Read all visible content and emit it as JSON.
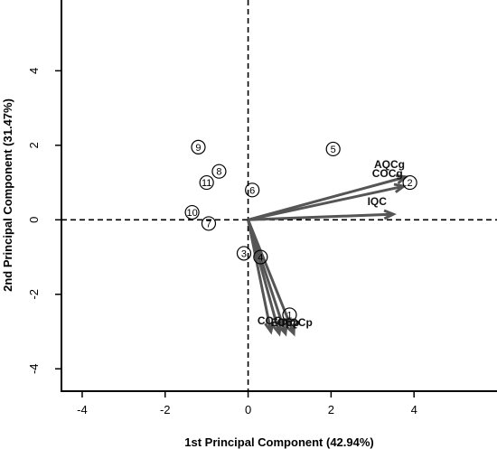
{
  "chart_data": {
    "type": "scatter",
    "subtype": "pca-biplot",
    "title": "",
    "xlabel": "1st Principal Component (42.94%)",
    "ylabel": "2nd Principal Component (31.47%)",
    "xlim": [
      -4.5,
      6.0
    ],
    "ylim": [
      -4.6,
      5.9
    ],
    "x_ticks": [
      "-4",
      "-2",
      "0",
      "2",
      "4"
    ],
    "y_ticks": [
      "-4",
      "-2",
      "0",
      "2",
      "4"
    ],
    "x_tick_values": [
      -4,
      -2,
      0,
      2,
      4
    ],
    "y_tick_values": [
      -4,
      -2,
      0,
      2,
      4
    ],
    "reference_lines": {
      "x": 0,
      "y": 0,
      "style": "dashed"
    },
    "grid": false,
    "observations": [
      {
        "label": "1",
        "x": 1.0,
        "y": -2.55
      },
      {
        "label": "2",
        "x": 3.9,
        "y": 1.0
      },
      {
        "label": "3",
        "x": -0.1,
        "y": -0.9
      },
      {
        "label": "4",
        "x": 0.3,
        "y": -1.0
      },
      {
        "label": "5",
        "x": 2.05,
        "y": 1.9
      },
      {
        "label": "6",
        "x": 0.1,
        "y": 0.8
      },
      {
        "label": "7",
        "x": -0.95,
        "y": -0.1
      },
      {
        "label": "8",
        "x": -0.7,
        "y": 1.3
      },
      {
        "label": "9",
        "x": -1.2,
        "y": 1.95
      },
      {
        "label": "10",
        "x": -1.35,
        "y": 0.2
      },
      {
        "label": "11",
        "x": -1.0,
        "y": 1.0
      }
    ],
    "loadings": [
      {
        "label": "AQCg",
        "x": 3.8,
        "y": 1.15
      },
      {
        "label": "COCg",
        "x": 3.75,
        "y": 0.9
      },
      {
        "label": "IQC",
        "x": 3.5,
        "y": 0.15
      },
      {
        "label": "ECp",
        "x": 0.75,
        "y": -3.05
      },
      {
        "label": "CCp",
        "x": 0.9,
        "y": -3.05
      },
      {
        "label": "AQCp",
        "x": 1.1,
        "y": -3.05
      },
      {
        "label": "COCp",
        "x": 0.55,
        "y": -3.0
      }
    ],
    "colors": {
      "arrow": "#555555",
      "axes": "#000000",
      "points": "#000000"
    }
  }
}
